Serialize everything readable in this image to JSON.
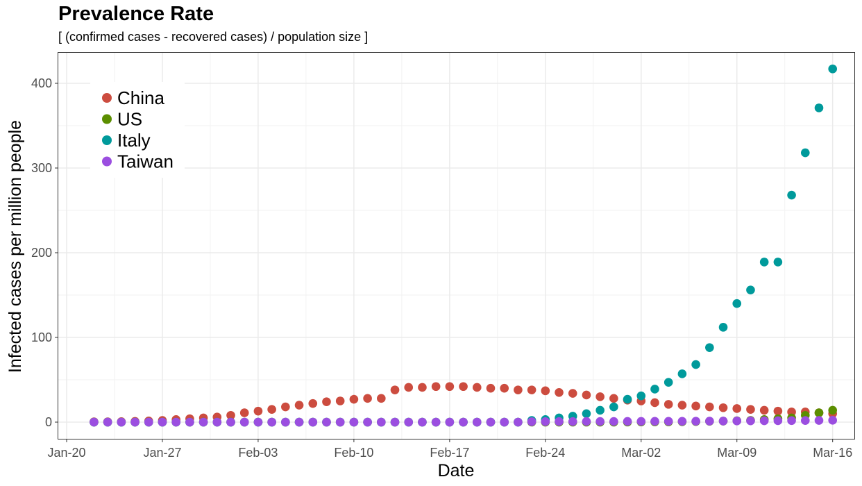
{
  "chart_data": {
    "type": "scatter",
    "title": "Prevalence Rate",
    "subtitle": "[ (confirmed cases - recovered cases) / population size ]",
    "xlabel": "Date",
    "ylabel": "Infected cases per million people",
    "x_ticks": [
      "Jan-20",
      "Jan-27",
      "Feb-03",
      "Feb-10",
      "Feb-17",
      "Feb-24",
      "Mar-02",
      "Mar-09",
      "Mar-16"
    ],
    "y_ticks": [
      0,
      100,
      200,
      300,
      400
    ],
    "ylim": [
      -20,
      432
    ],
    "grid": true,
    "legend_position": "top-left",
    "dates": [
      "Jan-22",
      "Jan-23",
      "Jan-24",
      "Jan-25",
      "Jan-26",
      "Jan-27",
      "Jan-28",
      "Jan-29",
      "Jan-30",
      "Jan-31",
      "Feb-01",
      "Feb-02",
      "Feb-03",
      "Feb-04",
      "Feb-05",
      "Feb-06",
      "Feb-07",
      "Feb-08",
      "Feb-09",
      "Feb-10",
      "Feb-11",
      "Feb-12",
      "Feb-13",
      "Feb-14",
      "Feb-15",
      "Feb-16",
      "Feb-17",
      "Feb-18",
      "Feb-19",
      "Feb-20",
      "Feb-21",
      "Feb-22",
      "Feb-23",
      "Feb-24",
      "Feb-25",
      "Feb-26",
      "Feb-27",
      "Feb-28",
      "Feb-29",
      "Mar-01",
      "Mar-02",
      "Mar-03",
      "Mar-04",
      "Mar-05",
      "Mar-06",
      "Mar-07",
      "Mar-08",
      "Mar-09",
      "Mar-10",
      "Mar-11",
      "Mar-12",
      "Mar-13",
      "Mar-14",
      "Mar-15",
      "Mar-16"
    ],
    "series": [
      {
        "name": "China",
        "color": "#cc4c3f",
        "values": [
          0.4,
          0.4,
          0.6,
          0.9,
          1.4,
          2,
          3,
          4,
          5,
          6,
          8,
          11,
          13,
          15,
          18,
          20,
          22,
          24,
          25,
          27,
          28,
          28,
          38,
          41,
          41,
          42,
          42,
          42,
          41,
          40,
          40,
          38,
          38,
          37,
          35,
          34,
          32,
          30,
          28,
          26,
          25,
          23,
          21,
          20,
          19,
          18,
          17,
          16,
          15,
          14,
          13,
          12,
          12,
          11,
          10
        ]
      },
      {
        "name": "US",
        "color": "#5b8e00",
        "values": [
          0,
          0,
          0,
          0,
          0,
          0,
          0,
          0,
          0,
          0,
          0,
          0,
          0,
          0,
          0,
          0,
          0,
          0,
          0,
          0,
          0,
          0,
          0,
          0,
          0,
          0,
          0,
          0,
          0,
          0,
          0,
          0,
          0,
          0,
          0,
          0,
          0,
          0,
          0,
          0.1,
          0.2,
          0.3,
          0.3,
          0.5,
          0.7,
          1,
          1.2,
          1.6,
          2,
          3,
          4,
          5,
          8,
          11,
          14
        ]
      },
      {
        "name": "Italy",
        "color": "#009a9b",
        "values": [
          0,
          0,
          0,
          0,
          0,
          0,
          0,
          0,
          0,
          0,
          0,
          0,
          0,
          0,
          0,
          0,
          0,
          0,
          0,
          0,
          0,
          0,
          0,
          0,
          0,
          0,
          0,
          0,
          0,
          0,
          0,
          0,
          2,
          3,
          5,
          7,
          10,
          14,
          18,
          27,
          31,
          39,
          47,
          57,
          68,
          88,
          112,
          140,
          156,
          189,
          189,
          268,
          318,
          371,
          417
        ]
      },
      {
        "name": "Taiwan",
        "color": "#9b4ee0",
        "values": [
          0,
          0,
          0,
          0,
          0,
          0,
          0,
          0,
          0,
          0,
          0,
          0,
          0,
          0,
          0,
          0,
          0,
          0,
          0,
          0,
          0,
          0,
          0,
          0,
          0,
          0,
          0,
          0,
          0,
          0,
          0,
          0,
          0.5,
          0.6,
          0.7,
          0.7,
          0.8,
          0.8,
          0.8,
          0.9,
          0.9,
          1,
          1,
          1,
          1.1,
          1.2,
          1.3,
          1.4,
          1.5,
          1.6,
          1.7,
          1.8,
          1.9,
          2,
          2.2
        ]
      }
    ]
  }
}
